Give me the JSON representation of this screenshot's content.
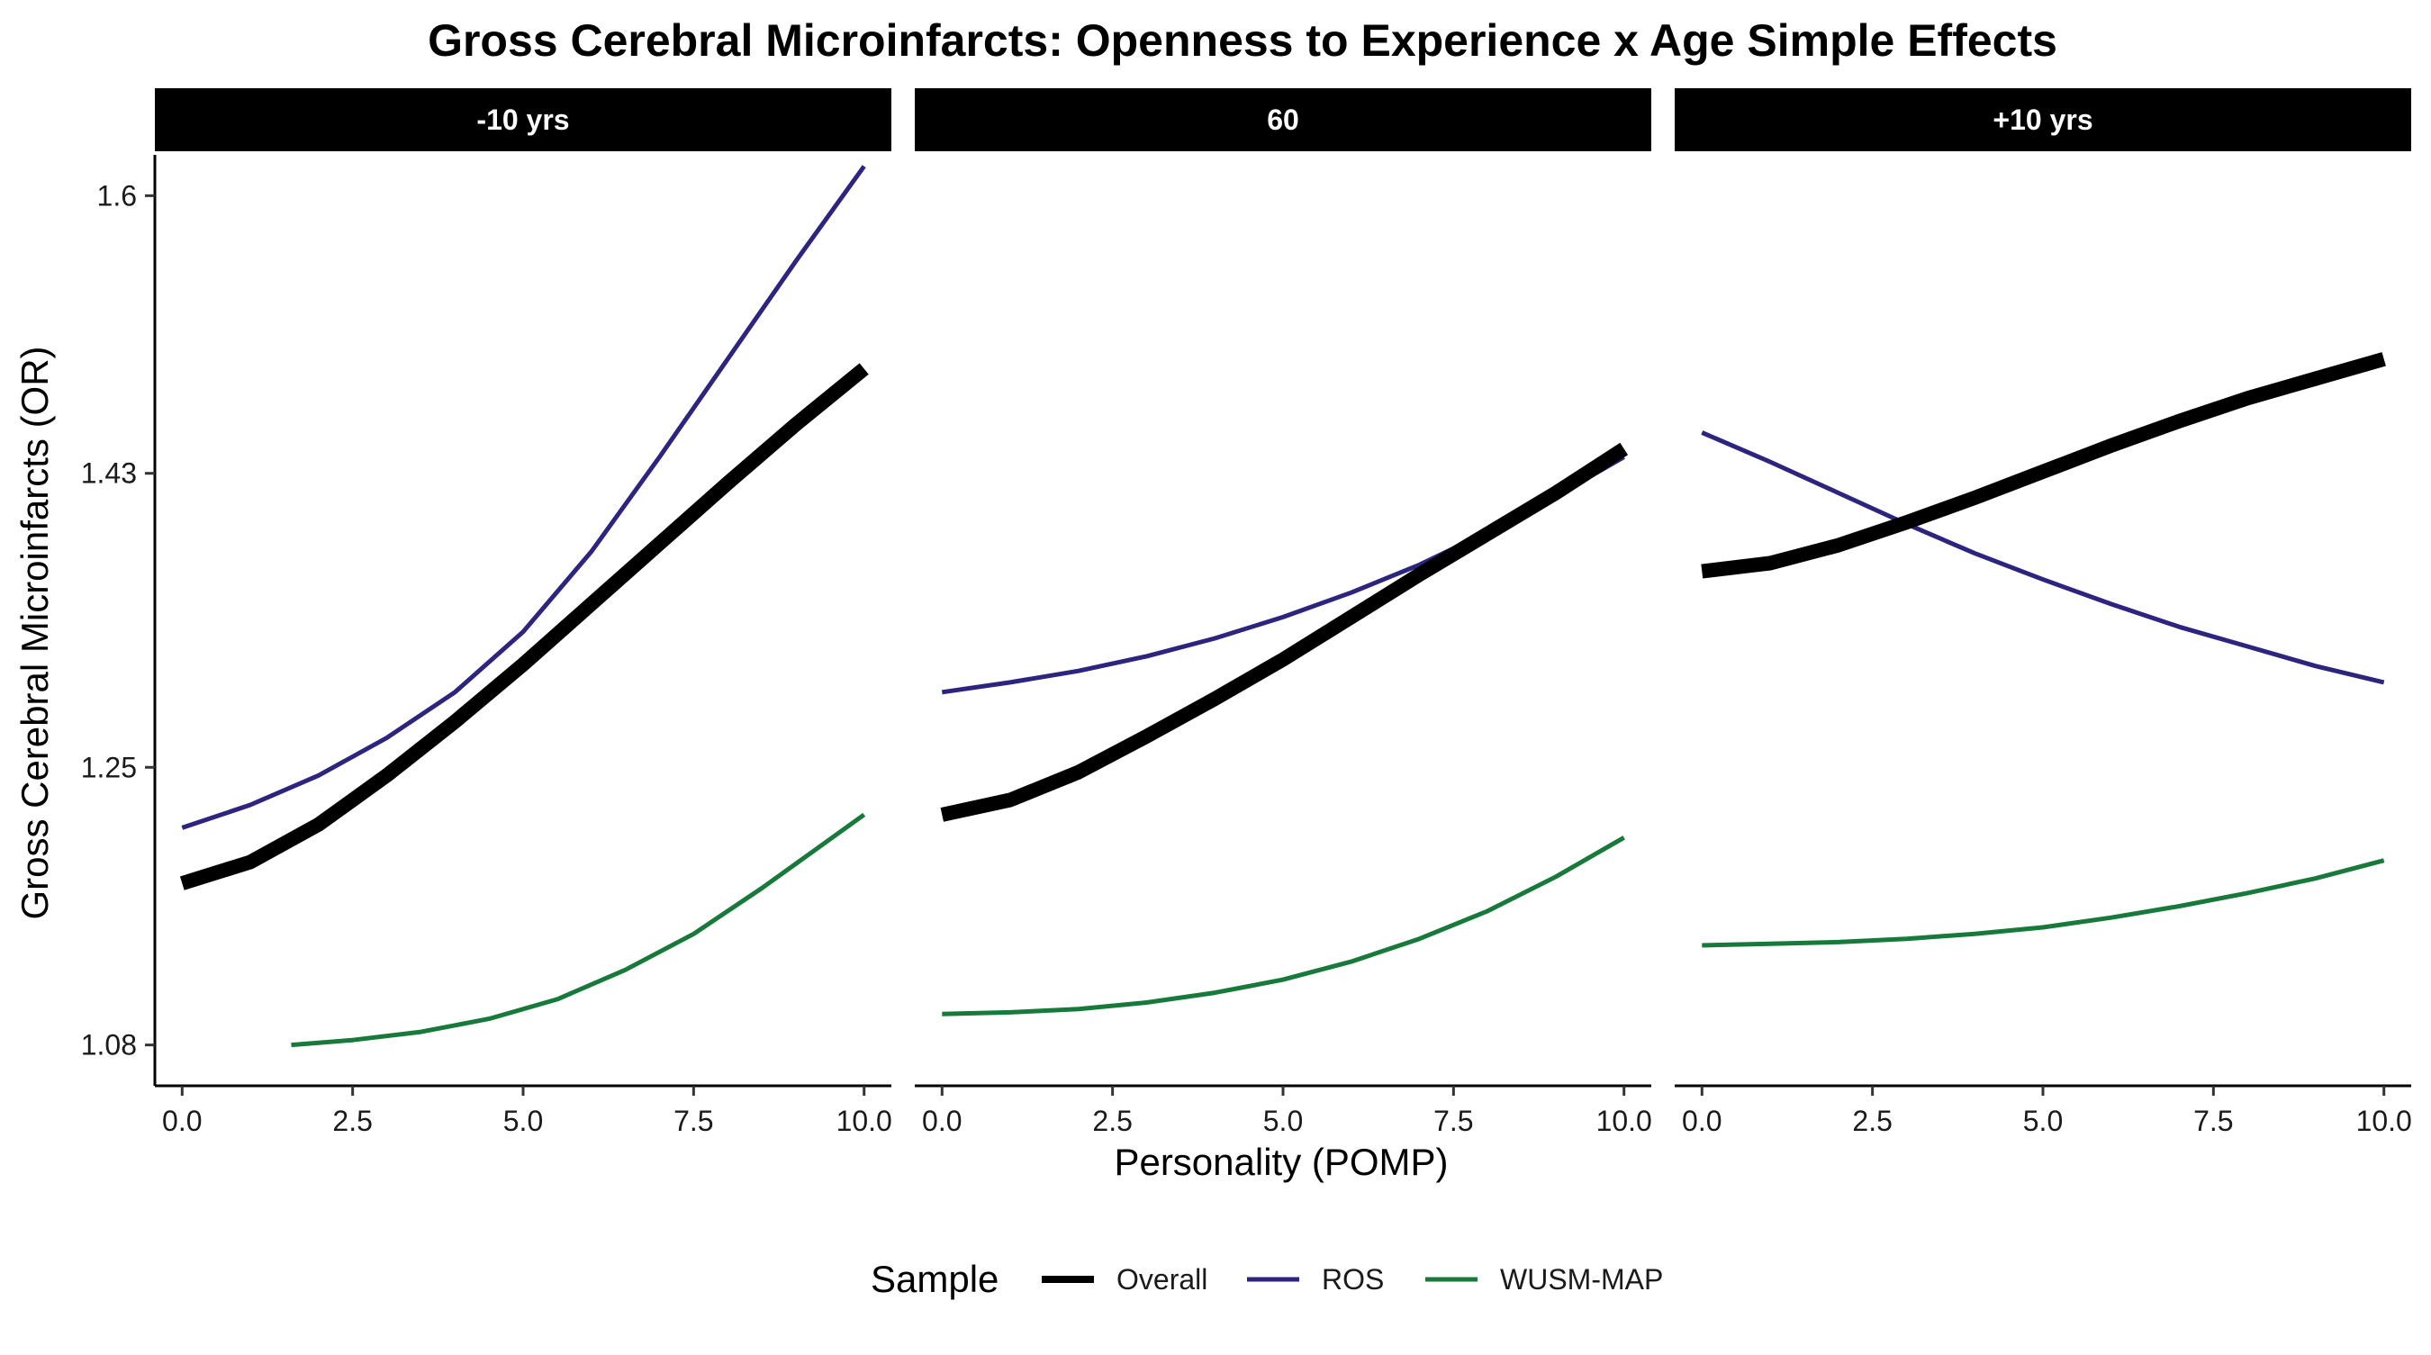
{
  "chart_data": {
    "type": "line",
    "title": "Gross Cerebral Microinfarcts: Openness to Experience x Age Simple Effects",
    "xlabel": "Personality (POMP)",
    "ylabel": "Gross Cerebral Microinfarcts (OR)",
    "xlim": [
      -0.4,
      10.4
    ],
    "ylim": [
      1.055,
      1.625
    ],
    "x_ticks": [
      0,
      2.5,
      5,
      7.5,
      10
    ],
    "x_tick_labels": [
      "0.0",
      "2.5",
      "5.0",
      "7.5",
      "10.0"
    ],
    "y_ticks": [
      1.08,
      1.25,
      1.43,
      1.6
    ],
    "y_tick_labels": [
      "1.08",
      "1.25",
      "1.43",
      "1.6"
    ],
    "grid": false,
    "legend": {
      "title": "Sample",
      "position": "bottom",
      "entries": [
        {
          "name": "Overall",
          "color": "#000000"
        },
        {
          "name": "ROS",
          "color": "#2d2480"
        },
        {
          "name": "WUSM-MAP",
          "color": "#187a3a"
        }
      ]
    },
    "facets": [
      {
        "label": "-10 yrs",
        "series": [
          {
            "name": "Overall",
            "color": "#000000",
            "x": [
              0,
              1,
              2,
              3,
              4,
              5,
              6,
              7,
              8,
              9,
              10
            ],
            "y": [
              1.179,
              1.192,
              1.215,
              1.245,
              1.278,
              1.313,
              1.35,
              1.387,
              1.424,
              1.46,
              1.494
            ]
          },
          {
            "name": "ROS",
            "color": "#2d2480",
            "x": [
              0,
              1,
              2,
              3,
              4,
              5,
              6,
              7,
              8,
              9,
              10
            ],
            "y": [
              1.213,
              1.227,
              1.245,
              1.268,
              1.296,
              1.333,
              1.382,
              1.44,
              1.5,
              1.56,
              1.618
            ]
          },
          {
            "name": "WUSM-MAP",
            "color": "#187a3a",
            "x": [
              1.6,
              2.5,
              3.5,
              4.5,
              5.5,
              6.5,
              7.5,
              8.5,
              9.3,
              10
            ],
            "y": [
              1.08,
              1.083,
              1.088,
              1.096,
              1.108,
              1.126,
              1.148,
              1.176,
              1.2,
              1.221
            ]
          }
        ]
      },
      {
        "label": "60",
        "series": [
          {
            "name": "Overall",
            "color": "#000000",
            "x": [
              0,
              1,
              2,
              3,
              4,
              5,
              6,
              7,
              8,
              9,
              10
            ],
            "y": [
              1.221,
              1.23,
              1.247,
              1.269,
              1.292,
              1.316,
              1.342,
              1.368,
              1.393,
              1.418,
              1.445
            ]
          },
          {
            "name": "ROS",
            "color": "#2d2480",
            "x": [
              0,
              1,
              2,
              3,
              4,
              5,
              6,
              7,
              8,
              9,
              10
            ],
            "y": [
              1.296,
              1.302,
              1.309,
              1.318,
              1.329,
              1.342,
              1.357,
              1.374,
              1.394,
              1.416,
              1.44
            ]
          },
          {
            "name": "WUSM-MAP",
            "color": "#187a3a",
            "x": [
              0,
              1,
              2,
              3,
              4,
              5,
              6,
              7,
              8,
              9,
              10
            ],
            "y": [
              1.099,
              1.1,
              1.102,
              1.106,
              1.112,
              1.12,
              1.131,
              1.145,
              1.162,
              1.183,
              1.207
            ]
          }
        ]
      },
      {
        "label": "+10 yrs",
        "series": [
          {
            "name": "Overall",
            "color": "#000000",
            "x": [
              0,
              1,
              2,
              3,
              4,
              5,
              6,
              7,
              8,
              9,
              10
            ],
            "y": [
              1.37,
              1.375,
              1.386,
              1.4,
              1.415,
              1.431,
              1.447,
              1.462,
              1.476,
              1.488,
              1.5
            ]
          },
          {
            "name": "ROS",
            "color": "#2d2480",
            "x": [
              0,
              1,
              2,
              3,
              4,
              5,
              6,
              7,
              8,
              9,
              10
            ],
            "y": [
              1.455,
              1.437,
              1.418,
              1.399,
              1.381,
              1.365,
              1.35,
              1.336,
              1.324,
              1.312,
              1.302
            ]
          },
          {
            "name": "WUSM-MAP",
            "color": "#187a3a",
            "x": [
              0,
              1,
              2,
              3,
              4,
              5,
              6,
              7,
              8,
              9,
              10
            ],
            "y": [
              1.141,
              1.142,
              1.143,
              1.145,
              1.148,
              1.152,
              1.158,
              1.165,
              1.173,
              1.182,
              1.193
            ]
          }
        ]
      }
    ]
  }
}
